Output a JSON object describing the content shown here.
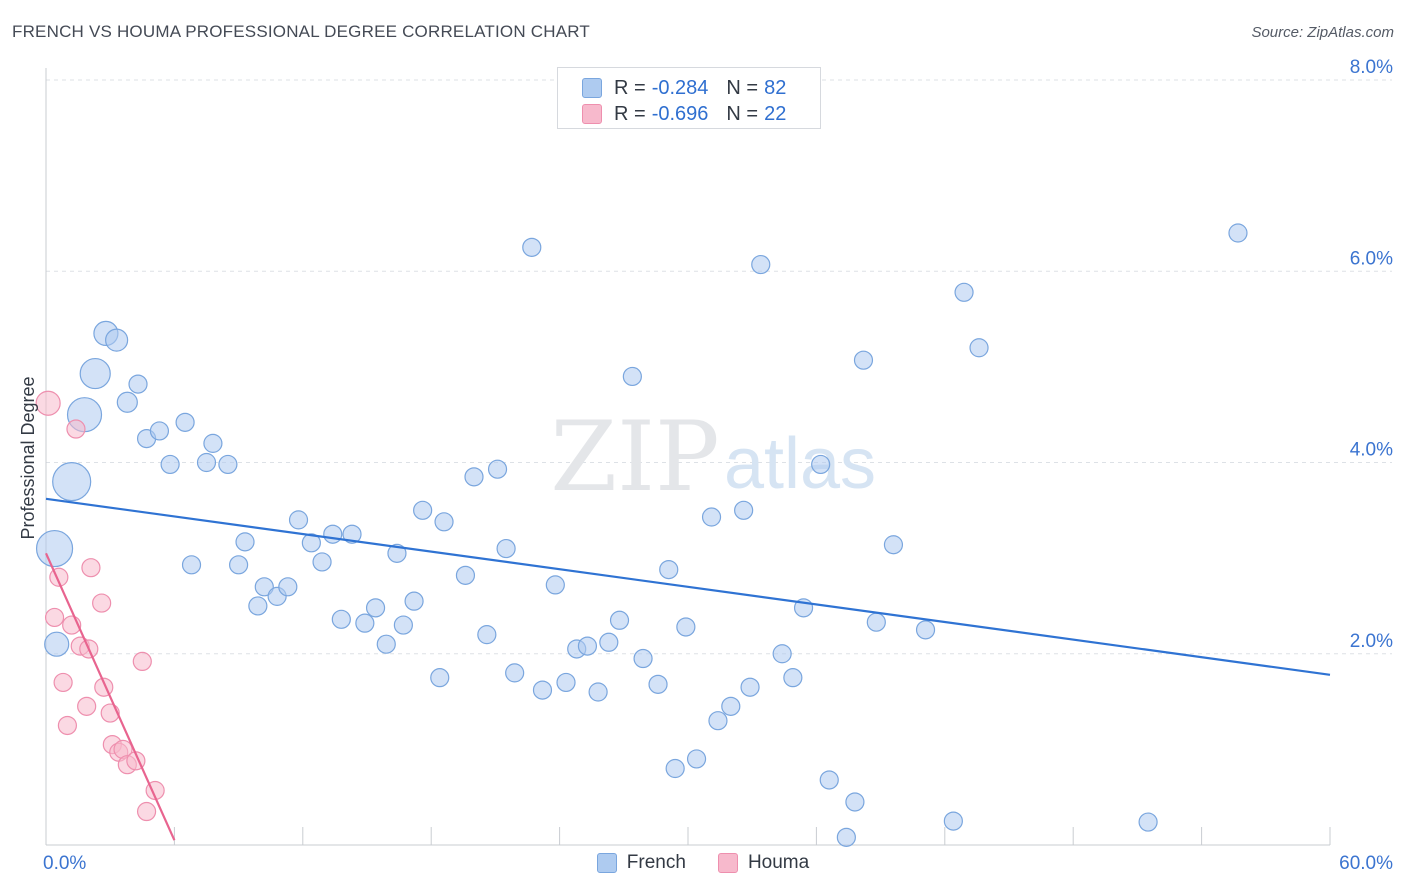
{
  "title": "FRENCH VS HOUMA PROFESSIONAL DEGREE CORRELATION CHART",
  "source": "Source: ZipAtlas.com",
  "watermark": {
    "zip": "ZIP",
    "atlas": "atlas"
  },
  "colors": {
    "french_fill": "#aecbf0",
    "french_stroke": "#7aa6de",
    "french_line": "#2f73d3",
    "houma_fill": "#f7b9cc",
    "houma_stroke": "#ee8fae",
    "houma_line": "#e8648f",
    "axis_value": "#3b74d0",
    "grid": "#dde1e6"
  },
  "legend": {
    "french": {
      "r_label": "R =",
      "r_value": "-0.284",
      "n_label": "N =",
      "n_value": "82"
    },
    "houma": {
      "r_label": "R =",
      "r_value": "-0.696",
      "n_label": "N =",
      "n_value": "22"
    }
  },
  "bottom_legend": {
    "french": "French",
    "houma": "Houma"
  },
  "chart_data": {
    "type": "scatter",
    "title": "FRENCH VS HOUMA PROFESSIONAL DEGREE CORRELATION CHART",
    "xlabel": "",
    "ylabel": "Professional Degree",
    "xlim": [
      0,
      60
    ],
    "ylim": [
      0,
      8
    ],
    "x_tick_labels": {
      "min": "0.0%",
      "max": "60.0%"
    },
    "y_ticks": [
      {
        "value": 2,
        "label": "2.0%"
      },
      {
        "value": 4,
        "label": "4.0%"
      },
      {
        "value": 6,
        "label": "6.0%"
      },
      {
        "value": 8,
        "label": "8.0%"
      }
    ],
    "series": [
      {
        "name": "French",
        "trend": {
          "x": [
            0,
            60
          ],
          "y": [
            3.62,
            1.78
          ]
        },
        "points": [
          [
            0.4,
            3.1,
            18
          ],
          [
            0.5,
            2.1,
            12
          ],
          [
            1.2,
            3.8,
            19
          ],
          [
            1.8,
            4.5,
            17
          ],
          [
            2.3,
            4.93,
            15
          ],
          [
            2.8,
            5.35,
            12
          ],
          [
            3.3,
            5.28,
            11
          ],
          [
            3.8,
            4.63,
            10
          ],
          [
            4.3,
            4.82,
            9
          ],
          [
            4.7,
            4.25,
            9
          ],
          [
            5.3,
            4.33,
            9
          ],
          [
            5.8,
            3.98,
            9
          ],
          [
            6.5,
            4.42,
            9
          ],
          [
            6.8,
            2.93,
            9
          ],
          [
            7.5,
            4.0,
            9
          ],
          [
            7.8,
            4.2,
            9
          ],
          [
            8.5,
            3.98,
            9
          ],
          [
            9.0,
            2.93,
            9
          ],
          [
            9.3,
            3.17,
            9
          ],
          [
            9.9,
            2.5,
            9
          ],
          [
            10.2,
            2.7,
            9
          ],
          [
            10.8,
            2.6,
            9
          ],
          [
            11.3,
            2.7,
            9
          ],
          [
            11.8,
            3.4,
            9
          ],
          [
            12.4,
            3.16,
            9
          ],
          [
            12.9,
            2.96,
            9
          ],
          [
            13.4,
            3.25,
            9
          ],
          [
            13.8,
            2.36,
            9
          ],
          [
            14.3,
            3.25,
            9
          ],
          [
            14.9,
            2.32,
            9
          ],
          [
            15.4,
            2.48,
            9
          ],
          [
            15.9,
            2.1,
            9
          ],
          [
            16.4,
            3.05,
            9
          ],
          [
            16.7,
            2.3,
            9
          ],
          [
            17.2,
            2.55,
            9
          ],
          [
            17.6,
            3.5,
            9
          ],
          [
            18.4,
            1.75,
            9
          ],
          [
            18.6,
            3.38,
            9
          ],
          [
            19.6,
            2.82,
            9
          ],
          [
            20.0,
            3.85,
            9
          ],
          [
            20.6,
            2.2,
            9
          ],
          [
            21.1,
            3.93,
            9
          ],
          [
            21.5,
            3.1,
            9
          ],
          [
            21.9,
            1.8,
            9
          ],
          [
            22.7,
            6.25,
            9
          ],
          [
            23.2,
            1.62,
            9
          ],
          [
            23.8,
            2.72,
            9
          ],
          [
            24.3,
            1.7,
            9
          ],
          [
            24.8,
            2.05,
            9
          ],
          [
            25.3,
            2.08,
            9
          ],
          [
            25.8,
            1.6,
            9
          ],
          [
            26.3,
            2.12,
            9
          ],
          [
            26.8,
            2.35,
            9
          ],
          [
            27.4,
            4.9,
            9
          ],
          [
            27.9,
            1.95,
            9
          ],
          [
            28.6,
            1.68,
            9
          ],
          [
            29.1,
            2.88,
            9
          ],
          [
            29.4,
            0.8,
            9
          ],
          [
            29.9,
            2.28,
            9
          ],
          [
            30.4,
            0.9,
            9
          ],
          [
            31.1,
            3.43,
            9
          ],
          [
            31.4,
            1.3,
            9
          ],
          [
            32.0,
            1.45,
            9
          ],
          [
            32.6,
            3.5,
            9
          ],
          [
            32.9,
            1.65,
            9
          ],
          [
            33.4,
            6.07,
            9
          ],
          [
            34.4,
            2.0,
            9
          ],
          [
            34.9,
            1.75,
            9
          ],
          [
            35.4,
            2.48,
            9
          ],
          [
            36.2,
            3.98,
            9
          ],
          [
            36.6,
            0.68,
            9
          ],
          [
            37.4,
            0.08,
            9
          ],
          [
            37.8,
            0.45,
            9
          ],
          [
            38.2,
            5.07,
            9
          ],
          [
            38.8,
            2.33,
            9
          ],
          [
            39.6,
            3.14,
            9
          ],
          [
            41.1,
            2.25,
            9
          ],
          [
            42.4,
            0.25,
            9
          ],
          [
            42.9,
            5.78,
            9
          ],
          [
            43.6,
            5.2,
            9
          ],
          [
            51.5,
            0.24,
            9
          ],
          [
            55.7,
            6.4,
            9
          ]
        ]
      },
      {
        "name": "Houma",
        "trend": {
          "x": [
            0.0,
            6.0
          ],
          "y": [
            3.05,
            0.05
          ]
        },
        "points": [
          [
            0.1,
            4.62,
            12
          ],
          [
            0.4,
            2.38,
            9
          ],
          [
            0.6,
            2.8,
            9
          ],
          [
            0.8,
            1.7,
            9
          ],
          [
            1.0,
            1.25,
            9
          ],
          [
            1.2,
            2.3,
            9
          ],
          [
            1.4,
            4.35,
            9
          ],
          [
            1.6,
            2.08,
            9
          ],
          [
            1.9,
            1.45,
            9
          ],
          [
            2.0,
            2.05,
            9
          ],
          [
            2.1,
            2.9,
            9
          ],
          [
            2.6,
            2.53,
            9
          ],
          [
            2.7,
            1.65,
            9
          ],
          [
            3.0,
            1.38,
            9
          ],
          [
            3.1,
            1.05,
            9
          ],
          [
            3.4,
            0.97,
            9
          ],
          [
            3.6,
            1.0,
            9
          ],
          [
            3.8,
            0.84,
            9
          ],
          [
            4.2,
            0.88,
            9
          ],
          [
            4.5,
            1.92,
            9
          ],
          [
            4.7,
            0.35,
            9
          ],
          [
            5.1,
            0.57,
            9
          ]
        ]
      }
    ]
  }
}
